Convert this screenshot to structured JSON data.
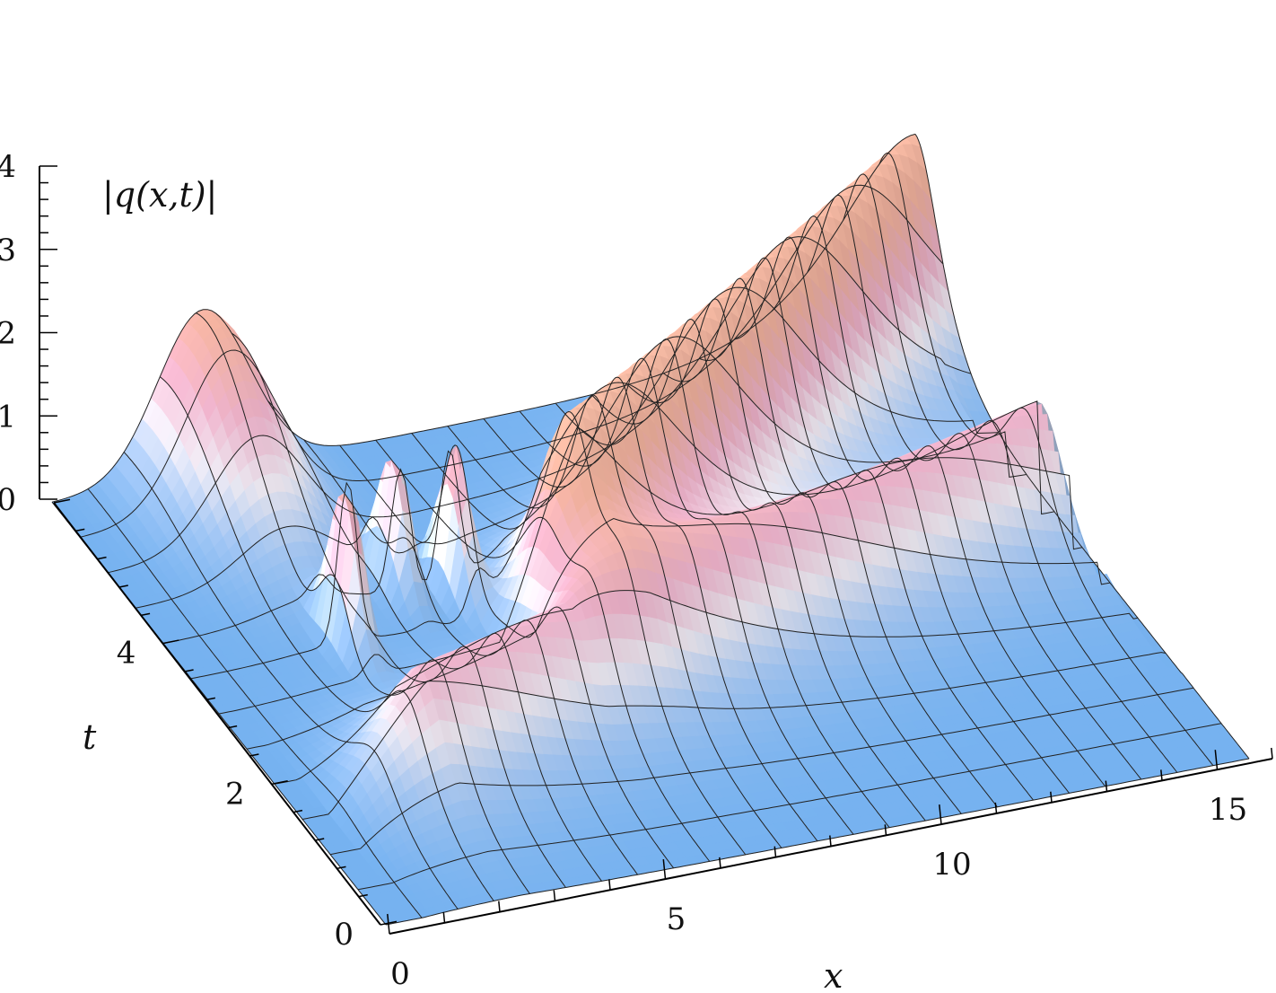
{
  "chart_data": {
    "type": "surface",
    "title": "",
    "xlabel": "x",
    "ylabel": "t",
    "zlabel": "|q(x,t)|",
    "xlim": [
      0,
      16
    ],
    "ylim": [
      0,
      6
    ],
    "zlim": [
      0,
      4
    ],
    "x_ticks": [
      "0",
      "5",
      "10",
      "15"
    ],
    "y_ticks": [
      "0",
      "2",
      "4"
    ],
    "z_ticks": [
      "0",
      "1",
      "2",
      "3",
      "4"
    ],
    "mesh": true,
    "features": [
      {
        "kind": "bump",
        "x": 2.8,
        "t": 5.8,
        "height": 2.0,
        "width": 1.2
      },
      {
        "kind": "sech-line",
        "x0": 5.5,
        "t0": 2.8,
        "x1": 16.0,
        "t1": 6.0,
        "height": 2.4
      },
      {
        "kind": "sech-line",
        "x0": 0.8,
        "t0": 1.4,
        "x1": 15.0,
        "t1": 3.3,
        "height": 1.4
      },
      {
        "kind": "spike",
        "x": 2.9,
        "t": 3.5,
        "height": 1.9
      },
      {
        "kind": "spike",
        "x": 4.4,
        "t": 4.1,
        "height": 1.6
      },
      {
        "kind": "spike",
        "x": 5.3,
        "t": 3.9,
        "height": 1.7
      }
    ]
  }
}
